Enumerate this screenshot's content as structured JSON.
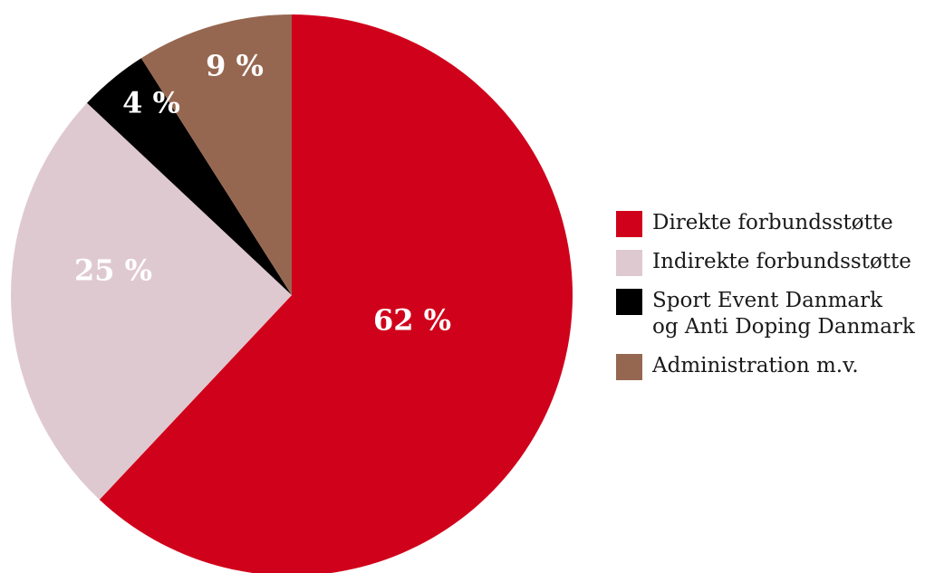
{
  "chart_data": {
    "type": "pie",
    "title": "",
    "slices": [
      {
        "name": "Direkte forbundsstøtte",
        "value": 62,
        "label": "62 %",
        "color": "#d0021b"
      },
      {
        "name": "Indirekte forbundsstøtte",
        "value": 25,
        "label": "25 %",
        "color": "#dfc9d0"
      },
      {
        "name": "Sport Event Danmark og Anti Doping Danmark",
        "value": 4,
        "label": "4 %",
        "color": "#000000"
      },
      {
        "name": "Administration m.v.",
        "value": 9,
        "label": "9 %",
        "color": "#966750"
      }
    ],
    "start": "12 o'clock",
    "direction": "clockwise",
    "legend_position": "right"
  },
  "legend": {
    "items": [
      {
        "lines": [
          "Direkte forbundsstøtte"
        ]
      },
      {
        "lines": [
          "Indirekte forbundsstøtte"
        ]
      },
      {
        "lines": [
          "Sport Event Danmark",
          "og Anti Doping Danmark"
        ]
      },
      {
        "lines": [
          "Administration m.v."
        ]
      }
    ]
  }
}
